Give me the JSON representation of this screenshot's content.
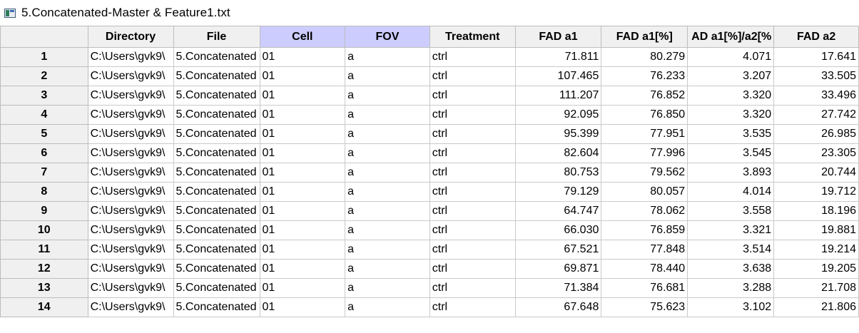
{
  "window": {
    "title": "5.Concatenated-Master & Feature1.txt",
    "icon": "data-table-icon"
  },
  "table": {
    "columns": [
      {
        "label": "Directory",
        "highlighted": false
      },
      {
        "label": "File",
        "highlighted": false
      },
      {
        "label": "Cell",
        "highlighted": true
      },
      {
        "label": "FOV",
        "highlighted": true
      },
      {
        "label": "Treatment",
        "highlighted": false
      },
      {
        "label": "FAD a1",
        "highlighted": false
      },
      {
        "label": "FAD a1[%]",
        "highlighted": false
      },
      {
        "label": "AD a1[%]/a2[%",
        "highlighted": false
      },
      {
        "label": "FAD a2",
        "highlighted": false
      }
    ],
    "highlight_color": "#ccccff",
    "rows": [
      {
        "n": "1",
        "cells": [
          "C:\\Users\\gvk9\\",
          "5.Concatenated",
          "01",
          "a",
          "ctrl",
          "71.811",
          "80.279",
          "4.071",
          "17.641"
        ]
      },
      {
        "n": "2",
        "cells": [
          "C:\\Users\\gvk9\\",
          "5.Concatenated",
          "01",
          "a",
          "ctrl",
          "107.465",
          "76.233",
          "3.207",
          "33.505"
        ]
      },
      {
        "n": "3",
        "cells": [
          "C:\\Users\\gvk9\\",
          "5.Concatenated",
          "01",
          "a",
          "ctrl",
          "111.207",
          "76.852",
          "3.320",
          "33.496"
        ]
      },
      {
        "n": "4",
        "cells": [
          "C:\\Users\\gvk9\\",
          "5.Concatenated",
          "01",
          "a",
          "ctrl",
          "92.095",
          "76.850",
          "3.320",
          "27.742"
        ]
      },
      {
        "n": "5",
        "cells": [
          "C:\\Users\\gvk9\\",
          "5.Concatenated",
          "01",
          "a",
          "ctrl",
          "95.399",
          "77.951",
          "3.535",
          "26.985"
        ]
      },
      {
        "n": "6",
        "cells": [
          "C:\\Users\\gvk9\\",
          "5.Concatenated",
          "01",
          "a",
          "ctrl",
          "82.604",
          "77.996",
          "3.545",
          "23.305"
        ]
      },
      {
        "n": "7",
        "cells": [
          "C:\\Users\\gvk9\\",
          "5.Concatenated",
          "01",
          "a",
          "ctrl",
          "80.753",
          "79.562",
          "3.893",
          "20.744"
        ]
      },
      {
        "n": "8",
        "cells": [
          "C:\\Users\\gvk9\\",
          "5.Concatenated",
          "01",
          "a",
          "ctrl",
          "79.129",
          "80.057",
          "4.014",
          "19.712"
        ]
      },
      {
        "n": "9",
        "cells": [
          "C:\\Users\\gvk9\\",
          "5.Concatenated",
          "01",
          "a",
          "ctrl",
          "64.747",
          "78.062",
          "3.558",
          "18.196"
        ]
      },
      {
        "n": "10",
        "cells": [
          "C:\\Users\\gvk9\\",
          "5.Concatenated",
          "01",
          "a",
          "ctrl",
          "66.030",
          "76.859",
          "3.321",
          "19.881"
        ]
      },
      {
        "n": "11",
        "cells": [
          "C:\\Users\\gvk9\\",
          "5.Concatenated",
          "01",
          "a",
          "ctrl",
          "67.521",
          "77.848",
          "3.514",
          "19.214"
        ]
      },
      {
        "n": "12",
        "cells": [
          "C:\\Users\\gvk9\\",
          "5.Concatenated",
          "01",
          "a",
          "ctrl",
          "69.871",
          "78.440",
          "3.638",
          "19.205"
        ]
      },
      {
        "n": "13",
        "cells": [
          "C:\\Users\\gvk9\\",
          "5.Concatenated",
          "01",
          "a",
          "ctrl",
          "71.384",
          "76.681",
          "3.288",
          "21.708"
        ]
      },
      {
        "n": "14",
        "cells": [
          "C:\\Users\\gvk9\\",
          "5.Concatenated",
          "01",
          "a",
          "ctrl",
          "67.648",
          "75.623",
          "3.102",
          "21.806"
        ]
      }
    ]
  }
}
